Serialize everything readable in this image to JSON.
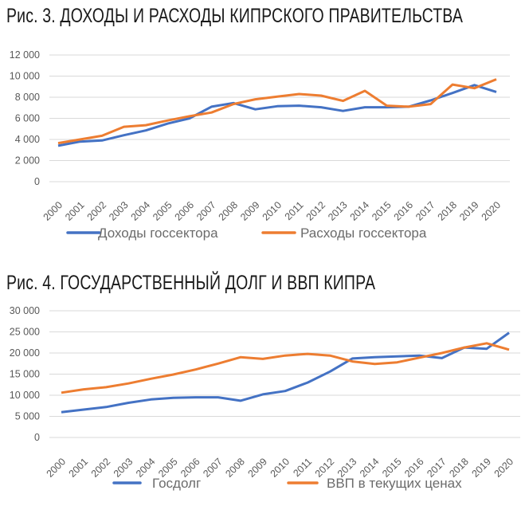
{
  "chart_data": [
    {
      "type": "line",
      "title": "Рис. 3. ДОХОДЫ И РАСХОДЫ КИПРСКОГО ПРАВИТЕЛЬСТВА",
      "x": [
        "2000",
        "2001",
        "2002",
        "2003",
        "2004",
        "2005",
        "2006",
        "2007",
        "2008",
        "2009",
        "2010",
        "2011",
        "2012",
        "2013",
        "2014",
        "2015",
        "2016",
        "2017",
        "2018",
        "2019",
        "2020"
      ],
      "ylim": [
        0,
        12000
      ],
      "yticks": [
        "0",
        "2 000",
        "4 000",
        "6 000",
        "8 000",
        "10 000",
        "12 000"
      ],
      "ytick_values": [
        0,
        2000,
        4000,
        6000,
        8000,
        10000,
        12000
      ],
      "grid": true,
      "legend": "bottom",
      "series": [
        {
          "name": "Доходы госсектора",
          "color": "#4472c4",
          "values": [
            3400,
            3800,
            3900,
            4400,
            4850,
            5500,
            6000,
            7100,
            7450,
            6850,
            7150,
            7200,
            7050,
            6700,
            7050,
            7050,
            7100,
            7700,
            8400,
            9150,
            8500
          ]
        },
        {
          "name": "Расходы госсектора",
          "color": "#ed7d31",
          "values": [
            3650,
            4000,
            4350,
            5200,
            5350,
            5800,
            6200,
            6550,
            7350,
            7800,
            8050,
            8300,
            8150,
            7650,
            8600,
            7200,
            7100,
            7350,
            9200,
            8850,
            9700
          ]
        }
      ]
    },
    {
      "type": "line",
      "title": "Рис. 4. ГОСУДАРСТВЕННЫЙ ДОЛГ И ВВП КИПРА",
      "x": [
        "2000",
        "2001",
        "2002",
        "2003",
        "2004",
        "2005",
        "2006",
        "2007",
        "2008",
        "2009",
        "2010",
        "2011",
        "2012",
        "2013",
        "2014",
        "2015",
        "2016",
        "2017",
        "2018",
        "2019",
        "2020"
      ],
      "ylim": [
        0,
        30000
      ],
      "yticks": [
        "0",
        "5 000",
        "10 000",
        "15 000",
        "20 000",
        "25 000",
        "30 000"
      ],
      "ytick_values": [
        0,
        5000,
        10000,
        15000,
        20000,
        25000,
        30000
      ],
      "grid": true,
      "legend": "bottom",
      "series": [
        {
          "name": "Госдолг",
          "color": "#4472c4",
          "values": [
            6000,
            6600,
            7200,
            8200,
            9000,
            9400,
            9500,
            9500,
            8700,
            10200,
            11000,
            13000,
            15600,
            18700,
            19000,
            19200,
            19400,
            18800,
            21300,
            21000,
            24800
          ]
        },
        {
          "name": "ВВП в текущих ценах",
          "color": "#ed7d31",
          "values": [
            10600,
            11400,
            11900,
            12800,
            13900,
            14900,
            16100,
            17500,
            19000,
            18600,
            19400,
            19800,
            19400,
            18000,
            17400,
            17800,
            18900,
            20000,
            21300,
            22300,
            20800
          ]
        }
      ]
    }
  ]
}
